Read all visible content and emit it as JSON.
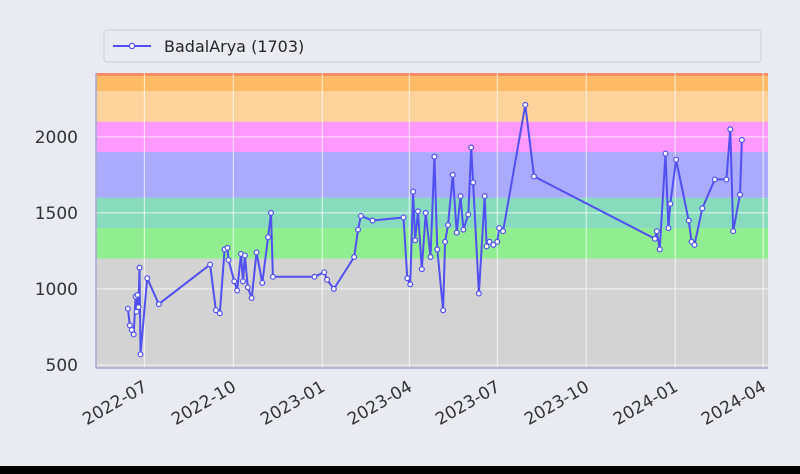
{
  "chart_data": {
    "type": "line",
    "title": "",
    "xlabel": "",
    "ylabel": "",
    "ylim": [
      480,
      2420
    ],
    "xlim": [
      "2022-05-12",
      "2024-04-06"
    ],
    "grid": true,
    "legend": {
      "placement": "top-left",
      "entries": [
        "BadalArya (1703)"
      ]
    },
    "x_ticks": [
      {
        "date": "2022-07-01",
        "label": "2022-07"
      },
      {
        "date": "2022-10-01",
        "label": "2022-10"
      },
      {
        "date": "2023-01-01",
        "label": "2023-01"
      },
      {
        "date": "2023-04-01",
        "label": "2023-04"
      },
      {
        "date": "2023-07-01",
        "label": "2023-07"
      },
      {
        "date": "2023-10-01",
        "label": "2023-10"
      },
      {
        "date": "2024-01-01",
        "label": "2024-01"
      },
      {
        "date": "2024-04-01",
        "label": "2024-04"
      }
    ],
    "y_ticks": [
      500,
      1000,
      1500,
      2000
    ],
    "bands": [
      {
        "from": 480,
        "to": 1200,
        "color": "#d3d3d3"
      },
      {
        "from": 1200,
        "to": 1400,
        "color": "#90ee90"
      },
      {
        "from": 1400,
        "to": 1600,
        "color": "#88dcbd"
      },
      {
        "from": 1600,
        "to": 1900,
        "color": "#aaaaff"
      },
      {
        "from": 1900,
        "to": 2100,
        "color": "#ff99ff"
      },
      {
        "from": 2100,
        "to": 2300,
        "color": "#ffd39b"
      },
      {
        "from": 2300,
        "to": 2400,
        "color": "#ffbb66"
      },
      {
        "from": 2400,
        "to": 2420,
        "color": "#ff8c66"
      }
    ],
    "series": [
      {
        "name": "BadalArya (1703)",
        "color": "#5050f0",
        "points": [
          [
            "2022-06-14",
            870
          ],
          [
            "2022-06-16",
            760
          ],
          [
            "2022-06-18",
            730
          ],
          [
            "2022-06-20",
            700
          ],
          [
            "2022-06-22",
            950
          ],
          [
            "2022-06-23",
            850
          ],
          [
            "2022-06-24",
            960
          ],
          [
            "2022-06-25",
            880
          ],
          [
            "2022-06-26",
            1140
          ],
          [
            "2022-06-27",
            570
          ],
          [
            "2022-07-04",
            1070
          ],
          [
            "2022-07-16",
            900
          ],
          [
            "2022-09-07",
            1160
          ],
          [
            "2022-09-13",
            860
          ],
          [
            "2022-09-17",
            840
          ],
          [
            "2022-09-22",
            1260
          ],
          [
            "2022-09-25",
            1270
          ],
          [
            "2022-09-26",
            1190
          ],
          [
            "2022-10-02",
            1050
          ],
          [
            "2022-10-05",
            990
          ],
          [
            "2022-10-09",
            1230
          ],
          [
            "2022-10-11",
            1050
          ],
          [
            "2022-10-13",
            1220
          ],
          [
            "2022-10-16",
            1010
          ],
          [
            "2022-10-20",
            940
          ],
          [
            "2022-10-25",
            1240
          ],
          [
            "2022-10-31",
            1040
          ],
          [
            "2022-11-06",
            1340
          ],
          [
            "2022-11-09",
            1500
          ],
          [
            "2022-11-11",
            1080
          ],
          [
            "2022-12-24",
            1080
          ],
          [
            "2023-01-03",
            1110
          ],
          [
            "2023-01-06",
            1060
          ],
          [
            "2023-01-13",
            1000
          ],
          [
            "2023-02-03",
            1210
          ],
          [
            "2023-02-07",
            1390
          ],
          [
            "2023-02-10",
            1480
          ],
          [
            "2023-02-22",
            1450
          ],
          [
            "2023-03-26",
            1470
          ],
          [
            "2023-03-30",
            1070
          ],
          [
            "2023-04-02",
            1030
          ],
          [
            "2023-04-05",
            1640
          ],
          [
            "2023-04-07",
            1320
          ],
          [
            "2023-04-10",
            1510
          ],
          [
            "2023-04-14",
            1130
          ],
          [
            "2023-04-18",
            1500
          ],
          [
            "2023-04-23",
            1210
          ],
          [
            "2023-04-27",
            1870
          ],
          [
            "2023-04-30",
            1260
          ],
          [
            "2023-05-06",
            860
          ],
          [
            "2023-05-08",
            1310
          ],
          [
            "2023-05-11",
            1420
          ],
          [
            "2023-05-16",
            1750
          ],
          [
            "2023-05-20",
            1370
          ],
          [
            "2023-05-24",
            1610
          ],
          [
            "2023-05-27",
            1390
          ],
          [
            "2023-06-01",
            1490
          ],
          [
            "2023-06-04",
            1930
          ],
          [
            "2023-06-06",
            1700
          ],
          [
            "2023-06-12",
            970
          ],
          [
            "2023-06-18",
            1610
          ],
          [
            "2023-06-20",
            1280
          ],
          [
            "2023-06-23",
            1310
          ],
          [
            "2023-06-27",
            1290
          ],
          [
            "2023-07-01",
            1310
          ],
          [
            "2023-07-03",
            1400
          ],
          [
            "2023-07-07",
            1380
          ],
          [
            "2023-07-30",
            2210
          ],
          [
            "2023-08-08",
            1740
          ],
          [
            "2023-12-11",
            1330
          ],
          [
            "2023-12-13",
            1380
          ],
          [
            "2023-12-16",
            1260
          ],
          [
            "2023-12-22",
            1890
          ],
          [
            "2023-12-25",
            1400
          ],
          [
            "2023-12-27",
            1560
          ],
          [
            "2024-01-02",
            1850
          ],
          [
            "2024-01-15",
            1450
          ],
          [
            "2024-01-18",
            1310
          ],
          [
            "2024-01-21",
            1290
          ],
          [
            "2024-01-29",
            1530
          ],
          [
            "2024-02-11",
            1720
          ],
          [
            "2024-02-23",
            1720
          ],
          [
            "2024-02-27",
            2050
          ],
          [
            "2024-03-01",
            1380
          ],
          [
            "2024-03-08",
            1620
          ],
          [
            "2024-03-10",
            1980
          ]
        ]
      }
    ]
  }
}
